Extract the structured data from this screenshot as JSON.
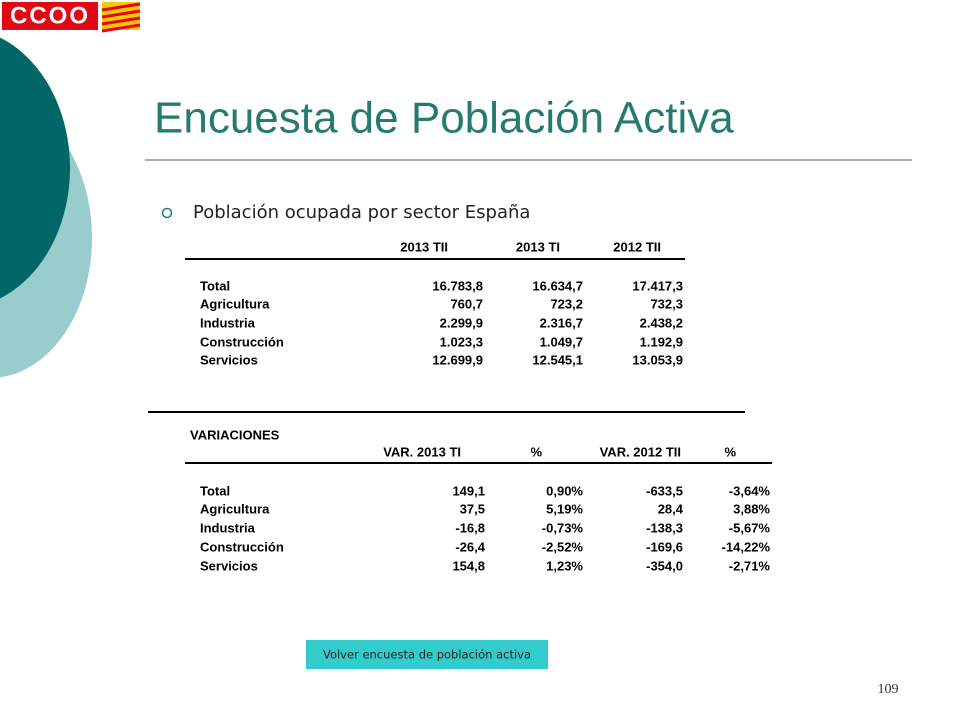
{
  "logo": "CCOO",
  "title": "Encuesta de Población Activa",
  "bullet": "Población ocupada por sector España",
  "table1": {
    "headers": [
      "2013 TII",
      "2013 TI",
      "2012 TII"
    ],
    "rows": [
      [
        "Total",
        "16.783,8",
        "16.634,7",
        "17.417,3"
      ],
      [
        "Agricultura",
        "760,7",
        "723,2",
        "732,3"
      ],
      [
        "Industria",
        "2.299,9",
        "2.316,7",
        "2.438,2"
      ],
      [
        "Construcción",
        "1.023,3",
        "1.049,7",
        "1.192,9"
      ],
      [
        "Servicios",
        "12.699,9",
        "12.545,1",
        "13.053,9"
      ]
    ]
  },
  "table2": {
    "title": "VARIACIONES",
    "headers": [
      "VAR. 2013 TI",
      "%",
      "VAR. 2012 TII",
      "%"
    ],
    "rows": [
      [
        "Total",
        "149,1",
        "0,90%",
        "-633,5",
        "-3,64%"
      ],
      [
        "Agricultura",
        "37,5",
        "5,19%",
        "28,4",
        "3,88%"
      ],
      [
        "Industria",
        "-16,8",
        "-0,73%",
        "-138,3",
        "-5,67%"
      ],
      [
        "Construcción",
        "-26,4",
        "-2,52%",
        "-169,6",
        "-14,22%"
      ],
      [
        "Servicios",
        "154,8",
        "1,23%",
        "-354,0",
        "-2,71%"
      ]
    ]
  },
  "button": "Volver encuesta de población activa",
  "page_number": "109"
}
